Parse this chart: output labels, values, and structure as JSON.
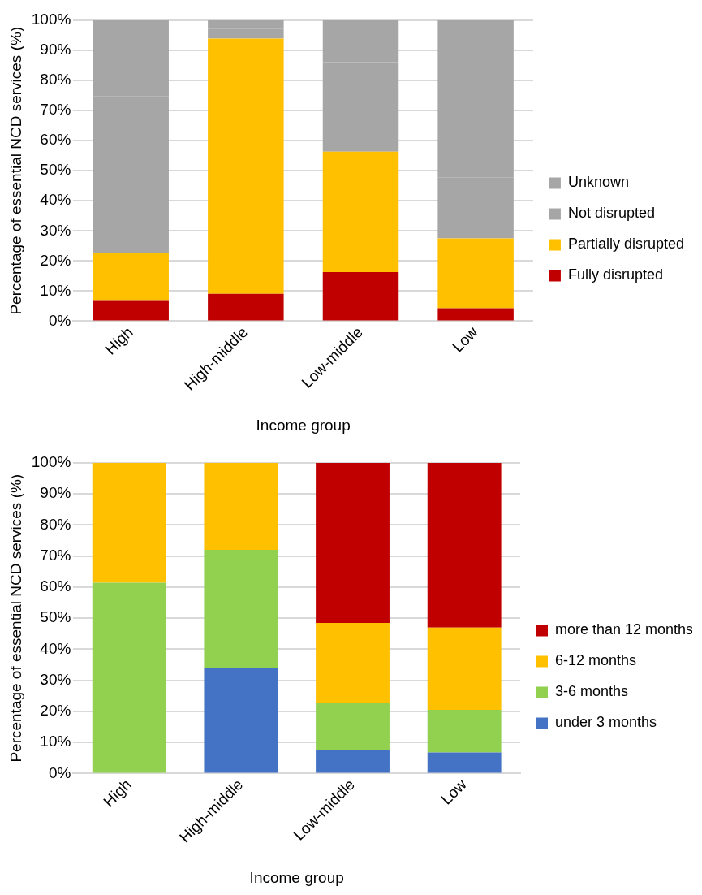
{
  "chart_data": [
    {
      "type": "bar",
      "stacked": true,
      "xlabel": "Income group",
      "ylabel": "Percentage of essential NCD services (%)",
      "categories": [
        "High",
        "High-middle",
        "Low-middle",
        "Low"
      ],
      "series": [
        {
          "name": "Fully disrupted",
          "color": "#c00000",
          "values": [
            6.7,
            9.1,
            16.3,
            4.3
          ]
        },
        {
          "name": "Partially disrupted",
          "color": "#ffc000",
          "values": [
            16.0,
            84.8,
            40.0,
            23.2
          ]
        },
        {
          "name": "Not disrupted",
          "color": "#a6a6a6",
          "values": [
            52.0,
            3.2,
            29.8,
            20.2
          ]
        },
        {
          "name": "Unknown",
          "color": "#a6a6a6",
          "values": [
            25.3,
            2.9,
            13.9,
            52.3
          ]
        }
      ],
      "ylim": [
        0,
        100
      ],
      "yticks": [
        {
          "value": 0,
          "label": "0%"
        },
        {
          "value": 10,
          "label": "10%"
        },
        {
          "value": 20,
          "label": "20%"
        },
        {
          "value": 30,
          "label": "30%"
        },
        {
          "value": 40,
          "label": "40%"
        },
        {
          "value": 50,
          "label": "50%"
        },
        {
          "value": 60,
          "label": "60%"
        },
        {
          "value": 70,
          "label": "70%"
        },
        {
          "value": 80,
          "label": "80%"
        },
        {
          "value": 90,
          "label": "90%"
        },
        {
          "value": 100,
          "label": "100%"
        }
      ],
      "grid": "y",
      "legend": "right"
    },
    {
      "type": "bar",
      "stacked": true,
      "xlabel": "Income group",
      "ylabel": "Percentage of essential NCD services (%)",
      "categories": [
        "High",
        "High-middle",
        "Low-middle",
        "Low"
      ],
      "series": [
        {
          "name": "under 3 months",
          "color": "#4472c4",
          "values": [
            0,
            34.1,
            7.5,
            6.8
          ]
        },
        {
          "name": "3-6 months",
          "color": "#92d050",
          "values": [
            61.4,
            37.9,
            15.2,
            13.7
          ]
        },
        {
          "name": "6-12 months",
          "color": "#ffc000",
          "values": [
            38.6,
            28.0,
            25.8,
            26.5
          ]
        },
        {
          "name": "more than 12 months",
          "color": "#c00000",
          "values": [
            0,
            0,
            51.5,
            53.0
          ]
        }
      ],
      "ylim": [
        0,
        100
      ],
      "yticks": [
        {
          "value": 0,
          "label": "0%"
        },
        {
          "value": 10,
          "label": "10%"
        },
        {
          "value": 20,
          "label": "20%"
        },
        {
          "value": 30,
          "label": "30%"
        },
        {
          "value": 40,
          "label": "40%"
        },
        {
          "value": 50,
          "label": "50%"
        },
        {
          "value": 60,
          "label": "60%"
        },
        {
          "value": 70,
          "label": "70%"
        },
        {
          "value": 80,
          "label": "80%"
        },
        {
          "value": 90,
          "label": "90%"
        },
        {
          "value": 100,
          "label": "100%"
        }
      ],
      "grid": "y",
      "legend": "right"
    }
  ]
}
